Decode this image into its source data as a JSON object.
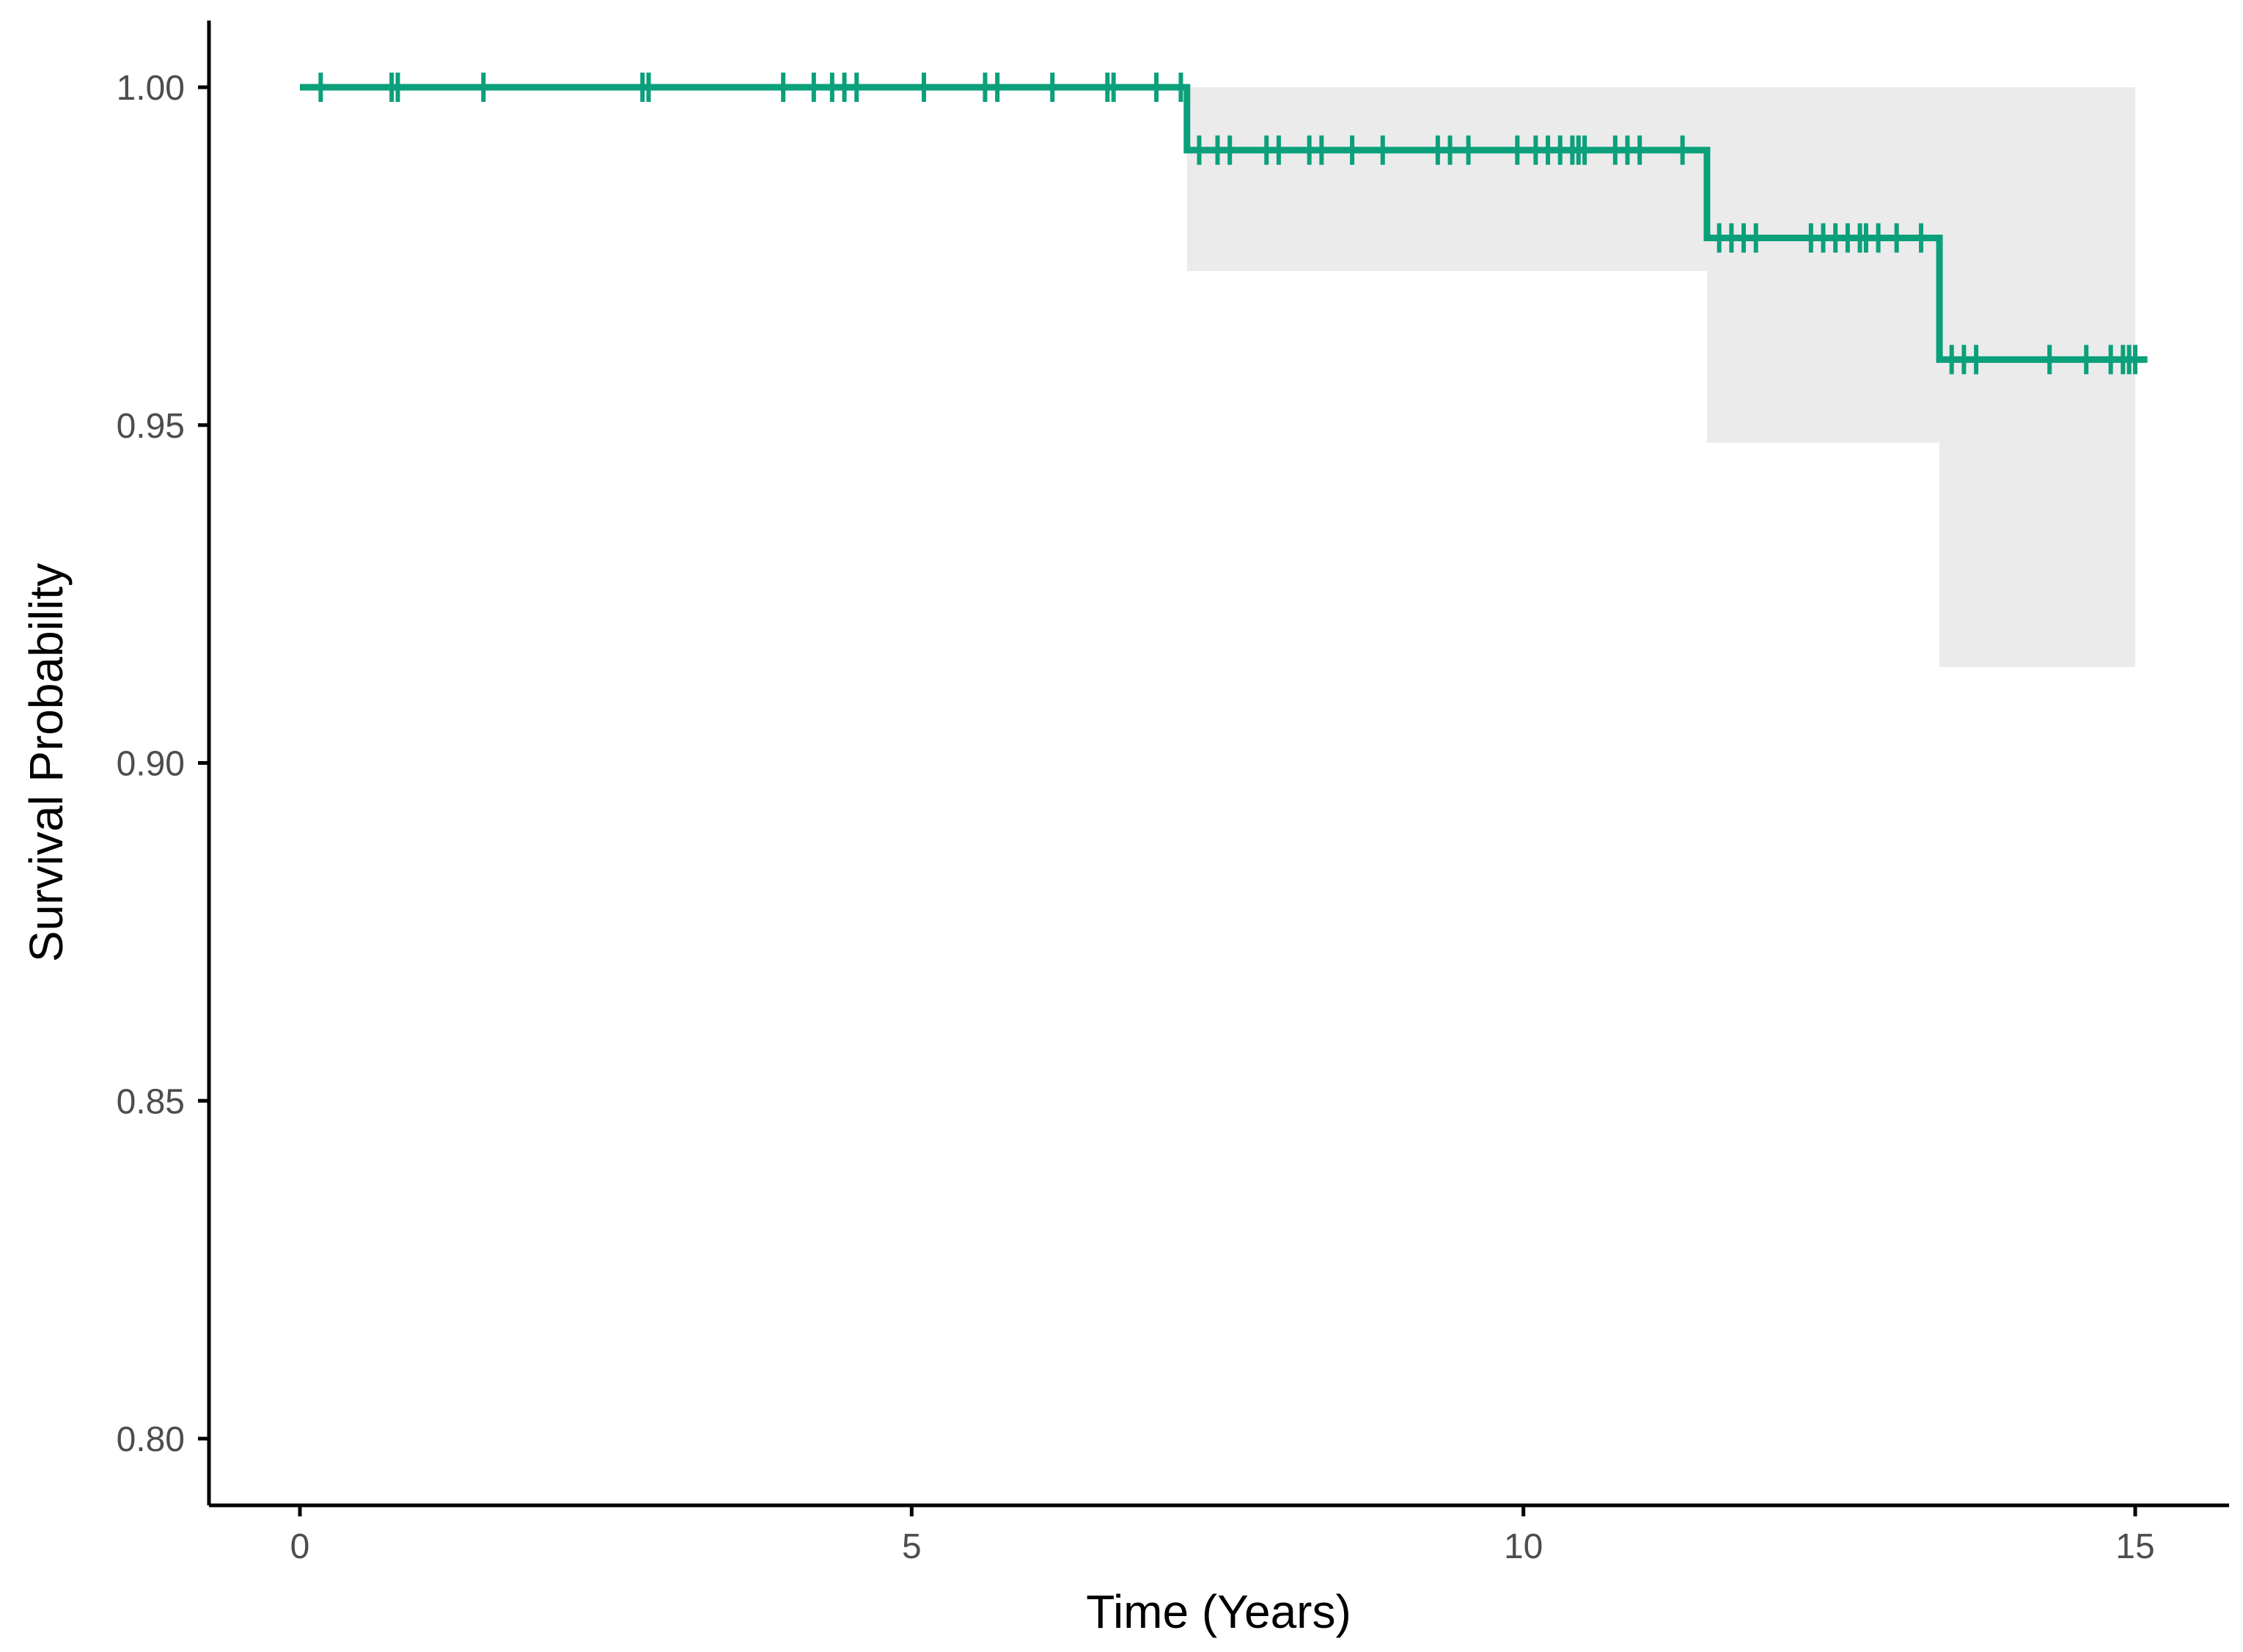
{
  "chart_data": {
    "type": "line",
    "subtype": "kaplan-meier step curve with confidence band and censor marks",
    "xlabel": "Time (Years)",
    "ylabel": "Survival Probability",
    "xlim": [
      -0.75,
      15.75
    ],
    "ylim": [
      0.79,
      1.01
    ],
    "xticks": [
      0,
      5,
      10,
      15
    ],
    "xtick_labels": [
      "0",
      "5",
      "10",
      "15"
    ],
    "yticks": [
      0.8,
      0.85,
      0.9,
      0.95,
      1.0
    ],
    "ytick_labels": [
      "0.80",
      "0.85",
      "0.90",
      "0.95",
      "1.00"
    ],
    "grid": false,
    "legend": "none",
    "colors": {
      "curve": "#0ba07b",
      "band": "#ebebeb",
      "axis": "#000000"
    },
    "series": [
      {
        "steps": [
          {
            "x": 0.0,
            "y": 1.0
          },
          {
            "x": 7.25,
            "y": 0.9907
          },
          {
            "x": 11.5,
            "y": 0.9777
          },
          {
            "x": 13.4,
            "y": 0.9597
          }
        ],
        "end_x": 15.1,
        "confidence_band": [
          {
            "x_start": 7.25,
            "x_end": 11.5,
            "lower": 0.9728,
            "upper": 1.0
          },
          {
            "x_start": 11.5,
            "x_end": 13.4,
            "lower": 0.9474,
            "upper": 1.0
          },
          {
            "x_start": 13.4,
            "x_end": 15.0,
            "lower": 0.9142,
            "upper": 1.0
          }
        ],
        "censor_times": [
          0.17,
          0.75,
          0.8,
          1.5,
          2.8,
          2.85,
          3.95,
          4.2,
          4.35,
          4.45,
          4.55,
          5.1,
          5.6,
          5.7,
          6.15,
          6.6,
          6.65,
          7.0,
          7.2,
          7.35,
          7.5,
          7.6,
          7.9,
          8.0,
          8.25,
          8.35,
          8.6,
          8.85,
          9.3,
          9.4,
          9.55,
          9.95,
          10.1,
          10.2,
          10.3,
          10.4,
          10.45,
          10.5,
          10.75,
          10.85,
          10.95,
          11.3,
          11.6,
          11.7,
          11.8,
          11.9,
          12.35,
          12.45,
          12.55,
          12.65,
          12.75,
          12.8,
          12.9,
          13.05,
          13.25,
          13.5,
          13.6,
          13.7,
          14.3,
          14.6,
          14.8,
          14.9,
          14.95,
          15.0
        ]
      }
    ]
  }
}
